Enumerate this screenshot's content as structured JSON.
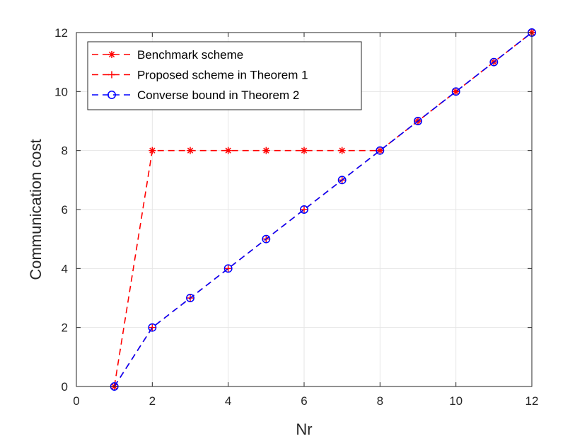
{
  "chart_data": {
    "type": "line",
    "xlabel": "Nr",
    "ylabel": "Communication cost",
    "xlim": [
      0,
      12
    ],
    "ylim": [
      0,
      12
    ],
    "xticks": [
      0,
      2,
      4,
      6,
      8,
      10,
      12
    ],
    "yticks": [
      0,
      2,
      4,
      6,
      8,
      10,
      12
    ],
    "grid": true,
    "legend_position": "top-left",
    "series": [
      {
        "name": "Benchmark scheme",
        "color": "#ff0000",
        "line_style": "dashed",
        "marker": "asterisk",
        "x": [
          1,
          2,
          3,
          4,
          5,
          6,
          7,
          8,
          9,
          10,
          11,
          12
        ],
        "y": [
          0,
          8,
          8,
          8,
          8,
          8,
          8,
          8,
          9,
          10,
          11,
          12
        ]
      },
      {
        "name": "Proposed scheme in Theorem 1",
        "color": "#ff0000",
        "line_style": "dashed",
        "marker": "plus",
        "x": [
          1,
          2,
          3,
          4,
          5,
          6,
          7,
          8,
          9,
          10,
          11,
          12
        ],
        "y": [
          0,
          2,
          3,
          4,
          5,
          6,
          7,
          8,
          9,
          10,
          11,
          12
        ]
      },
      {
        "name": "Converse bound in Theorem 2",
        "color": "#0000ff",
        "line_style": "dashed",
        "marker": "circle",
        "x": [
          1,
          2,
          3,
          4,
          5,
          6,
          7,
          8,
          9,
          10,
          11,
          12
        ],
        "y": [
          0,
          2,
          3,
          4,
          5,
          6,
          7,
          8,
          9,
          10,
          11,
          12
        ]
      }
    ]
  }
}
